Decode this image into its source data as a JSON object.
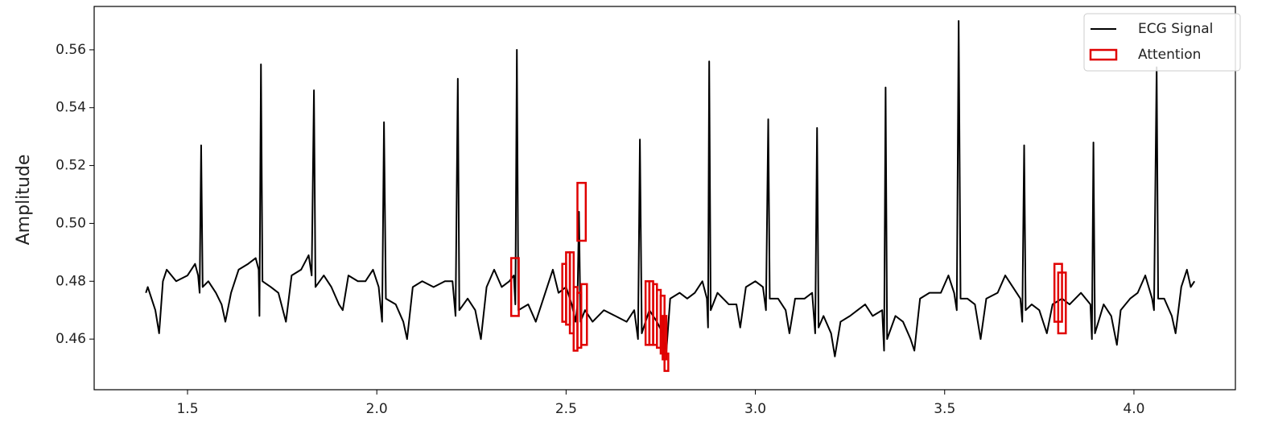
{
  "chart_data": {
    "type": "line",
    "ylabel": "Amplitude",
    "xlim": [
      1.2534,
      4.268
    ],
    "ylim": [
      0.4425,
      0.575
    ],
    "xticks": [
      1.5,
      {
        "value": 2,
        "label": "2.0"
      },
      2.5,
      {
        "value": 3,
        "label": "3.0"
      },
      3.5,
      {
        "value": 4,
        "label": "4.0"
      }
    ],
    "yticks": [
      0.46,
      0.48,
      {
        "value": 0.5,
        "label": "0.50"
      },
      0.52,
      0.54,
      0.56
    ],
    "legend": "upper right",
    "series": [
      {
        "name": "ECG Signal",
        "color": "#000000",
        "x": [
          1.39,
          1.395,
          1.4,
          1.415,
          1.425,
          1.435,
          1.445,
          1.47,
          1.5,
          1.52,
          1.528,
          1.532,
          1.536,
          1.54,
          1.555,
          1.575,
          1.59,
          1.6,
          1.615,
          1.635,
          1.66,
          1.68,
          1.688,
          1.69,
          1.694,
          1.698,
          1.72,
          1.74,
          1.76,
          1.775,
          1.8,
          1.82,
          1.828,
          1.834,
          1.838,
          1.86,
          1.88,
          1.9,
          1.91,
          1.925,
          1.95,
          1.97,
          1.99,
          2.005,
          2.014,
          2.019,
          2.024,
          2.05,
          2.07,
          2.08,
          2.095,
          2.12,
          2.15,
          2.18,
          2.2,
          2.208,
          2.214,
          2.218,
          2.24,
          2.26,
          2.275,
          2.29,
          2.31,
          2.33,
          2.35,
          2.362,
          2.366,
          2.37,
          2.374,
          2.4,
          2.42,
          2.43,
          2.45,
          2.465,
          2.48,
          2.5,
          2.515,
          2.525,
          2.53,
          2.534,
          2.538,
          2.55,
          2.57,
          2.6,
          2.63,
          2.66,
          2.68,
          2.69,
          2.695,
          2.7,
          2.72,
          2.74,
          2.755,
          2.765,
          2.775,
          2.8,
          2.82,
          2.84,
          2.86,
          2.872,
          2.875,
          2.878,
          2.882,
          2.9,
          2.93,
          2.95,
          2.96,
          2.975,
          3.0,
          3.02,
          3.028,
          3.034,
          3.038,
          3.06,
          3.08,
          3.09,
          3.105,
          3.13,
          3.15,
          3.158,
          3.163,
          3.167,
          3.18,
          3.2,
          3.21,
          3.225,
          3.25,
          3.27,
          3.29,
          3.31,
          3.335,
          3.34,
          3.344,
          3.348,
          3.37,
          3.39,
          3.41,
          3.42,
          3.435,
          3.46,
          3.49,
          3.51,
          3.525,
          3.532,
          3.537,
          3.542,
          3.56,
          3.58,
          3.595,
          3.61,
          3.64,
          3.66,
          3.68,
          3.7,
          3.705,
          3.71,
          3.714,
          3.73,
          3.75,
          3.77,
          3.785,
          3.81,
          3.83,
          3.86,
          3.885,
          3.889,
          3.893,
          3.897,
          3.92,
          3.94,
          3.955,
          3.965,
          3.99,
          4.01,
          4.03,
          4.048,
          4.053,
          4.06,
          4.064,
          4.08,
          4.1,
          4.11,
          4.125,
          4.14,
          4.15,
          4.16
        ],
        "values": [
          0.476,
          0.478,
          0.476,
          0.47,
          0.462,
          0.48,
          0.484,
          0.48,
          0.482,
          0.486,
          0.482,
          0.476,
          0.527,
          0.478,
          0.48,
          0.476,
          0.472,
          0.466,
          0.476,
          0.484,
          0.486,
          0.488,
          0.484,
          0.468,
          0.555,
          0.48,
          0.478,
          0.476,
          0.466,
          0.482,
          0.484,
          0.489,
          0.482,
          0.546,
          0.478,
          0.482,
          0.478,
          0.472,
          0.47,
          0.482,
          0.48,
          0.48,
          0.484,
          0.478,
          0.466,
          0.535,
          0.474,
          0.472,
          0.466,
          0.46,
          0.478,
          0.48,
          0.478,
          0.48,
          0.48,
          0.468,
          0.55,
          0.47,
          0.474,
          0.47,
          0.46,
          0.478,
          0.484,
          0.478,
          0.48,
          0.482,
          0.472,
          0.56,
          0.47,
          0.472,
          0.466,
          0.47,
          0.478,
          0.484,
          0.476,
          0.478,
          0.472,
          0.466,
          0.472,
          0.504,
          0.466,
          0.47,
          0.466,
          0.47,
          0.468,
          0.466,
          0.47,
          0.46,
          0.529,
          0.462,
          0.47,
          0.466,
          0.462,
          0.456,
          0.474,
          0.476,
          0.474,
          0.476,
          0.48,
          0.474,
          0.464,
          0.556,
          0.47,
          0.476,
          0.472,
          0.472,
          0.464,
          0.478,
          0.48,
          0.478,
          0.47,
          0.536,
          0.474,
          0.474,
          0.47,
          0.462,
          0.474,
          0.474,
          0.476,
          0.462,
          0.533,
          0.464,
          0.468,
          0.462,
          0.454,
          0.466,
          0.468,
          0.47,
          0.472,
          0.468,
          0.47,
          0.456,
          0.547,
          0.46,
          0.468,
          0.466,
          0.46,
          0.456,
          0.474,
          0.476,
          0.476,
          0.482,
          0.476,
          0.47,
          0.57,
          0.474,
          0.474,
          0.472,
          0.46,
          0.474,
          0.476,
          0.482,
          0.478,
          0.474,
          0.466,
          0.527,
          0.47,
          0.472,
          0.47,
          0.462,
          0.472,
          0.474,
          0.472,
          0.476,
          0.472,
          0.46,
          0.528,
          0.462,
          0.472,
          0.468,
          0.458,
          0.47,
          0.474,
          0.476,
          0.482,
          0.474,
          0.47,
          0.554,
          0.474,
          0.474,
          0.468,
          0.462,
          0.478,
          0.484,
          0.478,
          0.48
        ]
      }
    ],
    "attention": {
      "name": "Attention",
      "color": "#e00000",
      "x0": [
        2.355,
        2.53,
        2.49,
        2.5,
        2.51,
        2.52,
        2.53,
        2.54,
        2.71,
        2.72,
        2.73,
        2.74,
        2.75,
        2.755,
        2.76,
        3.79,
        3.8
      ],
      "x1": [
        2.375,
        2.552,
        2.5,
        2.51,
        2.52,
        2.53,
        2.54,
        2.555,
        2.72,
        2.73,
        2.74,
        2.75,
        2.76,
        2.765,
        2.77,
        3.81,
        3.82
      ],
      "y0": [
        0.468,
        0.494,
        0.466,
        0.465,
        0.462,
        0.456,
        0.457,
        0.458,
        0.458,
        0.458,
        0.458,
        0.457,
        0.455,
        0.453,
        0.449,
        0.466,
        0.462
      ],
      "y1": [
        0.488,
        0.514,
        0.486,
        0.49,
        0.49,
        0.478,
        0.476,
        0.479,
        0.48,
        0.48,
        0.479,
        0.477,
        0.475,
        0.468,
        0.455,
        0.486,
        0.483
      ]
    }
  }
}
